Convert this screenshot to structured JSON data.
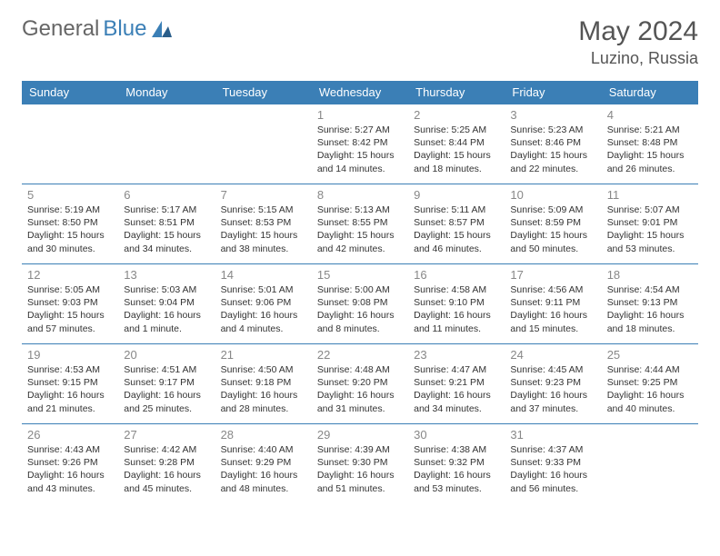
{
  "brand": {
    "part1": "General",
    "part2": "Blue"
  },
  "title": "May 2024",
  "location": "Luzino, Russia",
  "colors": {
    "header_bg": "#3b7fb6",
    "header_text": "#ffffff",
    "border": "#3b7fb6",
    "daynum": "#888888",
    "text": "#333333",
    "page_bg": "#ffffff"
  },
  "weekdays": [
    "Sunday",
    "Monday",
    "Tuesday",
    "Wednesday",
    "Thursday",
    "Friday",
    "Saturday"
  ],
  "weeks": [
    [
      null,
      null,
      null,
      {
        "day": "1",
        "sunrise": "Sunrise: 5:27 AM",
        "sunset": "Sunset: 8:42 PM",
        "daylight": "Daylight: 15 hours and 14 minutes."
      },
      {
        "day": "2",
        "sunrise": "Sunrise: 5:25 AM",
        "sunset": "Sunset: 8:44 PM",
        "daylight": "Daylight: 15 hours and 18 minutes."
      },
      {
        "day": "3",
        "sunrise": "Sunrise: 5:23 AM",
        "sunset": "Sunset: 8:46 PM",
        "daylight": "Daylight: 15 hours and 22 minutes."
      },
      {
        "day": "4",
        "sunrise": "Sunrise: 5:21 AM",
        "sunset": "Sunset: 8:48 PM",
        "daylight": "Daylight: 15 hours and 26 minutes."
      }
    ],
    [
      {
        "day": "5",
        "sunrise": "Sunrise: 5:19 AM",
        "sunset": "Sunset: 8:50 PM",
        "daylight": "Daylight: 15 hours and 30 minutes."
      },
      {
        "day": "6",
        "sunrise": "Sunrise: 5:17 AM",
        "sunset": "Sunset: 8:51 PM",
        "daylight": "Daylight: 15 hours and 34 minutes."
      },
      {
        "day": "7",
        "sunrise": "Sunrise: 5:15 AM",
        "sunset": "Sunset: 8:53 PM",
        "daylight": "Daylight: 15 hours and 38 minutes."
      },
      {
        "day": "8",
        "sunrise": "Sunrise: 5:13 AM",
        "sunset": "Sunset: 8:55 PM",
        "daylight": "Daylight: 15 hours and 42 minutes."
      },
      {
        "day": "9",
        "sunrise": "Sunrise: 5:11 AM",
        "sunset": "Sunset: 8:57 PM",
        "daylight": "Daylight: 15 hours and 46 minutes."
      },
      {
        "day": "10",
        "sunrise": "Sunrise: 5:09 AM",
        "sunset": "Sunset: 8:59 PM",
        "daylight": "Daylight: 15 hours and 50 minutes."
      },
      {
        "day": "11",
        "sunrise": "Sunrise: 5:07 AM",
        "sunset": "Sunset: 9:01 PM",
        "daylight": "Daylight: 15 hours and 53 minutes."
      }
    ],
    [
      {
        "day": "12",
        "sunrise": "Sunrise: 5:05 AM",
        "sunset": "Sunset: 9:03 PM",
        "daylight": "Daylight: 15 hours and 57 minutes."
      },
      {
        "day": "13",
        "sunrise": "Sunrise: 5:03 AM",
        "sunset": "Sunset: 9:04 PM",
        "daylight": "Daylight: 16 hours and 1 minute."
      },
      {
        "day": "14",
        "sunrise": "Sunrise: 5:01 AM",
        "sunset": "Sunset: 9:06 PM",
        "daylight": "Daylight: 16 hours and 4 minutes."
      },
      {
        "day": "15",
        "sunrise": "Sunrise: 5:00 AM",
        "sunset": "Sunset: 9:08 PM",
        "daylight": "Daylight: 16 hours and 8 minutes."
      },
      {
        "day": "16",
        "sunrise": "Sunrise: 4:58 AM",
        "sunset": "Sunset: 9:10 PM",
        "daylight": "Daylight: 16 hours and 11 minutes."
      },
      {
        "day": "17",
        "sunrise": "Sunrise: 4:56 AM",
        "sunset": "Sunset: 9:11 PM",
        "daylight": "Daylight: 16 hours and 15 minutes."
      },
      {
        "day": "18",
        "sunrise": "Sunrise: 4:54 AM",
        "sunset": "Sunset: 9:13 PM",
        "daylight": "Daylight: 16 hours and 18 minutes."
      }
    ],
    [
      {
        "day": "19",
        "sunrise": "Sunrise: 4:53 AM",
        "sunset": "Sunset: 9:15 PM",
        "daylight": "Daylight: 16 hours and 21 minutes."
      },
      {
        "day": "20",
        "sunrise": "Sunrise: 4:51 AM",
        "sunset": "Sunset: 9:17 PM",
        "daylight": "Daylight: 16 hours and 25 minutes."
      },
      {
        "day": "21",
        "sunrise": "Sunrise: 4:50 AM",
        "sunset": "Sunset: 9:18 PM",
        "daylight": "Daylight: 16 hours and 28 minutes."
      },
      {
        "day": "22",
        "sunrise": "Sunrise: 4:48 AM",
        "sunset": "Sunset: 9:20 PM",
        "daylight": "Daylight: 16 hours and 31 minutes."
      },
      {
        "day": "23",
        "sunrise": "Sunrise: 4:47 AM",
        "sunset": "Sunset: 9:21 PM",
        "daylight": "Daylight: 16 hours and 34 minutes."
      },
      {
        "day": "24",
        "sunrise": "Sunrise: 4:45 AM",
        "sunset": "Sunset: 9:23 PM",
        "daylight": "Daylight: 16 hours and 37 minutes."
      },
      {
        "day": "25",
        "sunrise": "Sunrise: 4:44 AM",
        "sunset": "Sunset: 9:25 PM",
        "daylight": "Daylight: 16 hours and 40 minutes."
      }
    ],
    [
      {
        "day": "26",
        "sunrise": "Sunrise: 4:43 AM",
        "sunset": "Sunset: 9:26 PM",
        "daylight": "Daylight: 16 hours and 43 minutes."
      },
      {
        "day": "27",
        "sunrise": "Sunrise: 4:42 AM",
        "sunset": "Sunset: 9:28 PM",
        "daylight": "Daylight: 16 hours and 45 minutes."
      },
      {
        "day": "28",
        "sunrise": "Sunrise: 4:40 AM",
        "sunset": "Sunset: 9:29 PM",
        "daylight": "Daylight: 16 hours and 48 minutes."
      },
      {
        "day": "29",
        "sunrise": "Sunrise: 4:39 AM",
        "sunset": "Sunset: 9:30 PM",
        "daylight": "Daylight: 16 hours and 51 minutes."
      },
      {
        "day": "30",
        "sunrise": "Sunrise: 4:38 AM",
        "sunset": "Sunset: 9:32 PM",
        "daylight": "Daylight: 16 hours and 53 minutes."
      },
      {
        "day": "31",
        "sunrise": "Sunrise: 4:37 AM",
        "sunset": "Sunset: 9:33 PM",
        "daylight": "Daylight: 16 hours and 56 minutes."
      },
      null
    ]
  ]
}
